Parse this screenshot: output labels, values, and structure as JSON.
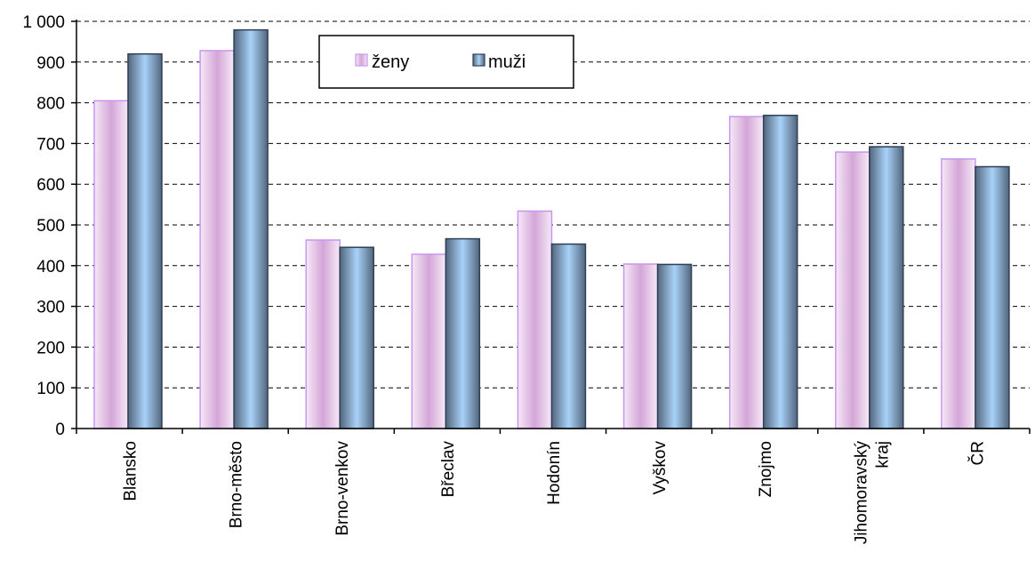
{
  "chart_data": {
    "type": "bar",
    "categories": [
      [
        "Blansko"
      ],
      [
        "Brno-město"
      ],
      [
        "Brno-venkov"
      ],
      [
        "Břeclav"
      ],
      [
        "Hodonín"
      ],
      [
        "Vyškov"
      ],
      [
        "Znojmo"
      ],
      [
        "Jihomoravský",
        "kraj"
      ],
      [
        "ČR"
      ]
    ],
    "series": [
      {
        "name": "ženy",
        "values": [
          805,
          928,
          463,
          428,
          534,
          404,
          766,
          679,
          662
        ]
      },
      {
        "name": "muži",
        "values": [
          920,
          979,
          445,
          466,
          453,
          403,
          769,
          692,
          643
        ]
      }
    ],
    "ylim": [
      0,
      1000
    ],
    "yticks": [
      0,
      100,
      200,
      300,
      400,
      500,
      600,
      700,
      800,
      900,
      1000
    ],
    "ytick_labels": [
      "0",
      "100",
      "200",
      "300",
      "400",
      "500",
      "600",
      "700",
      "800",
      "900",
      "1 000"
    ],
    "grid": "horizontal dashed",
    "legend_position": "top-center",
    "colors": {
      "zeny_edge": "#c896f0",
      "zeny_light": "#f6e9f6",
      "zeny_mid": "#d4a6d8",
      "muzi_edge": "#2f3f55",
      "muzi_dark": "#52667d",
      "muzi_light": "#a9d2f8"
    }
  }
}
